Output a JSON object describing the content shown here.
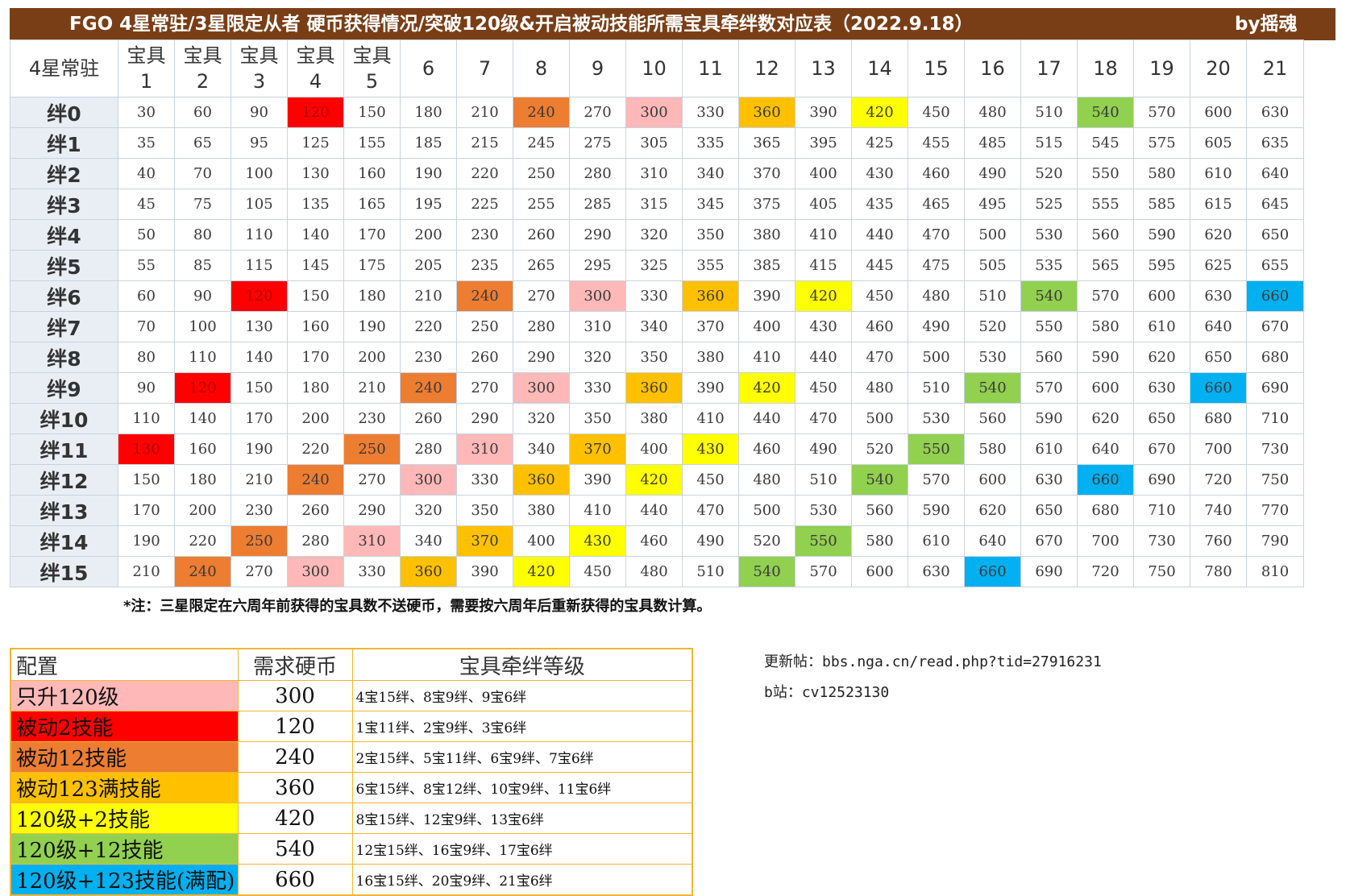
{
  "title": "FGO  4星常驻/3星限定从者  硬币获得情况/突破120级&开启被动技能所需宝具牵绊数对应表（2022.9.18）",
  "author": "by摇魂",
  "corner_label": "4星常驻",
  "np_headers": [
    "宝具\n1",
    "宝具\n2",
    "宝具\n3",
    "宝具\n4",
    "宝具\n5",
    "6",
    "7",
    "8",
    "9",
    "10",
    "11",
    "12",
    "13",
    "14",
    "15",
    "16",
    "17",
    "18",
    "19",
    "20",
    "21"
  ],
  "bond_rows": [
    {
      "label": "绊0",
      "values": [
        30,
        60,
        90,
        120,
        150,
        180,
        210,
        240,
        270,
        300,
        330,
        360,
        390,
        420,
        450,
        480,
        510,
        540,
        570,
        600,
        630
      ]
    },
    {
      "label": "绊1",
      "values": [
        35,
        65,
        95,
        125,
        155,
        185,
        215,
        245,
        275,
        305,
        335,
        365,
        395,
        425,
        455,
        485,
        515,
        545,
        575,
        605,
        635
      ]
    },
    {
      "label": "绊2",
      "values": [
        40,
        70,
        100,
        130,
        160,
        190,
        220,
        250,
        280,
        310,
        340,
        370,
        400,
        430,
        460,
        490,
        520,
        550,
        580,
        610,
        640
      ]
    },
    {
      "label": "绊3",
      "values": [
        45,
        75,
        105,
        135,
        165,
        195,
        225,
        255,
        285,
        315,
        345,
        375,
        405,
        435,
        465,
        495,
        525,
        555,
        585,
        615,
        645
      ]
    },
    {
      "label": "绊4",
      "values": [
        50,
        80,
        110,
        140,
        170,
        200,
        230,
        260,
        290,
        320,
        350,
        380,
        410,
        440,
        470,
        500,
        530,
        560,
        590,
        620,
        650
      ]
    },
    {
      "label": "绊5",
      "values": [
        55,
        85,
        115,
        145,
        175,
        205,
        235,
        265,
        295,
        325,
        355,
        385,
        415,
        445,
        475,
        505,
        535,
        565,
        595,
        625,
        655
      ]
    },
    {
      "label": "绊6",
      "values": [
        60,
        90,
        120,
        150,
        180,
        210,
        240,
        270,
        300,
        330,
        360,
        390,
        420,
        450,
        480,
        510,
        540,
        570,
        600,
        630,
        660
      ]
    },
    {
      "label": "绊7",
      "values": [
        70,
        100,
        130,
        160,
        190,
        220,
        250,
        280,
        310,
        340,
        370,
        400,
        430,
        460,
        490,
        520,
        550,
        580,
        610,
        640,
        670
      ]
    },
    {
      "label": "绊8",
      "values": [
        80,
        110,
        140,
        170,
        200,
        230,
        260,
        290,
        320,
        350,
        380,
        410,
        440,
        470,
        500,
        530,
        560,
        590,
        620,
        650,
        680
      ]
    },
    {
      "label": "绊9",
      "values": [
        90,
        120,
        150,
        180,
        210,
        240,
        270,
        300,
        330,
        360,
        390,
        420,
        450,
        480,
        510,
        540,
        570,
        600,
        630,
        660,
        690
      ]
    },
    {
      "label": "绊10",
      "values": [
        110,
        140,
        170,
        200,
        230,
        260,
        290,
        320,
        350,
        380,
        410,
        440,
        470,
        500,
        530,
        560,
        590,
        620,
        650,
        680,
        710
      ]
    },
    {
      "label": "绊11",
      "values": [
        130,
        160,
        190,
        220,
        250,
        280,
        310,
        340,
        370,
        400,
        430,
        460,
        490,
        520,
        550,
        580,
        610,
        640,
        670,
        700,
        730
      ]
    },
    {
      "label": "绊12",
      "values": [
        150,
        180,
        210,
        240,
        270,
        300,
        330,
        360,
        390,
        420,
        450,
        480,
        510,
        540,
        570,
        600,
        630,
        660,
        690,
        720,
        750
      ]
    },
    {
      "label": "绊13",
      "values": [
        170,
        200,
        230,
        260,
        290,
        320,
        350,
        380,
        410,
        440,
        470,
        500,
        530,
        560,
        590,
        620,
        650,
        680,
        710,
        740,
        770
      ]
    },
    {
      "label": "绊14",
      "values": [
        190,
        220,
        250,
        280,
        310,
        340,
        370,
        400,
        430,
        460,
        490,
        520,
        550,
        580,
        610,
        640,
        670,
        700,
        730,
        760,
        790
      ]
    },
    {
      "label": "绊15",
      "values": [
        210,
        240,
        270,
        300,
        330,
        360,
        390,
        420,
        450,
        480,
        510,
        540,
        570,
        600,
        630,
        660,
        690,
        720,
        750,
        780,
        810
      ]
    }
  ],
  "highlight_colors": {
    "120": "#ff0000",
    "130": "#ff0000",
    "240": "#ed7d31",
    "250": "#ed7d31",
    "300": "#ffb8b8",
    "310": "#ffb8b8",
    "360": "#ffc000",
    "370": "#ffc000",
    "420": "#ffff00",
    "430": "#ffff00",
    "540": "#92d050",
    "550": "#92d050",
    "660": "#00b0f0"
  },
  "highlighted_cells": [
    "0-3",
    "0-7",
    "0-9",
    "0-11",
    "0-13",
    "0-17",
    "6-2",
    "6-6",
    "6-8",
    "6-10",
    "6-12",
    "6-16",
    "6-20",
    "9-1",
    "9-5",
    "9-7",
    "9-9",
    "9-11",
    "9-15",
    "9-19",
    "11-0",
    "11-4",
    "11-6",
    "11-8",
    "11-10",
    "11-14",
    "12-3",
    "12-5",
    "12-7",
    "12-9",
    "12-13",
    "12-17",
    "14-2",
    "14-4",
    "14-6",
    "14-8",
    "14-12",
    "15-1",
    "15-3",
    "15-5",
    "15-7",
    "15-11",
    "15-15"
  ],
  "footnote": "*注：三星限定在六周年前获得的宝具数不送硬币，需要按六周年后重新获得的宝具数计算。",
  "legend": {
    "headers": [
      "配置",
      "需求硬币",
      "宝具牵绊等级"
    ],
    "rows": [
      {
        "config": "只升120级",
        "coins": "300",
        "levels": "4宝15绊、8宝9绊、9宝6绊",
        "color": "#ffb8b8"
      },
      {
        "config": "被动2技能",
        "coins": "120",
        "levels": "1宝11绊、2宝9绊、3宝6绊",
        "color": "#ff0000"
      },
      {
        "config": "被动12技能",
        "coins": "240",
        "levels": "2宝15绊、5宝11绊、6宝9绊、7宝6绊",
        "color": "#ed7d31"
      },
      {
        "config": "被动123满技能",
        "coins": "360",
        "levels": "6宝15绊、8宝12绊、10宝9绊、11宝6绊",
        "color": "#ffc000"
      },
      {
        "config": "120级+2技能",
        "coins": "420",
        "levels": "8宝15绊、12宝9绊、13宝6绊",
        "color": "#ffff00"
      },
      {
        "config": "120级+12技能",
        "coins": "540",
        "levels": "12宝15绊、16宝9绊、17宝6绊",
        "color": "#92d050"
      },
      {
        "config": "120级+123技能(满配)",
        "coins": "660",
        "levels": "16宝15绊、20宝9绊、21宝6绊",
        "color": "#00b0f0"
      }
    ]
  },
  "links": {
    "update_post": "更新帖：bbs.nga.cn/read.php?tid=27916231",
    "bilibili": "b站：cv12523130"
  }
}
